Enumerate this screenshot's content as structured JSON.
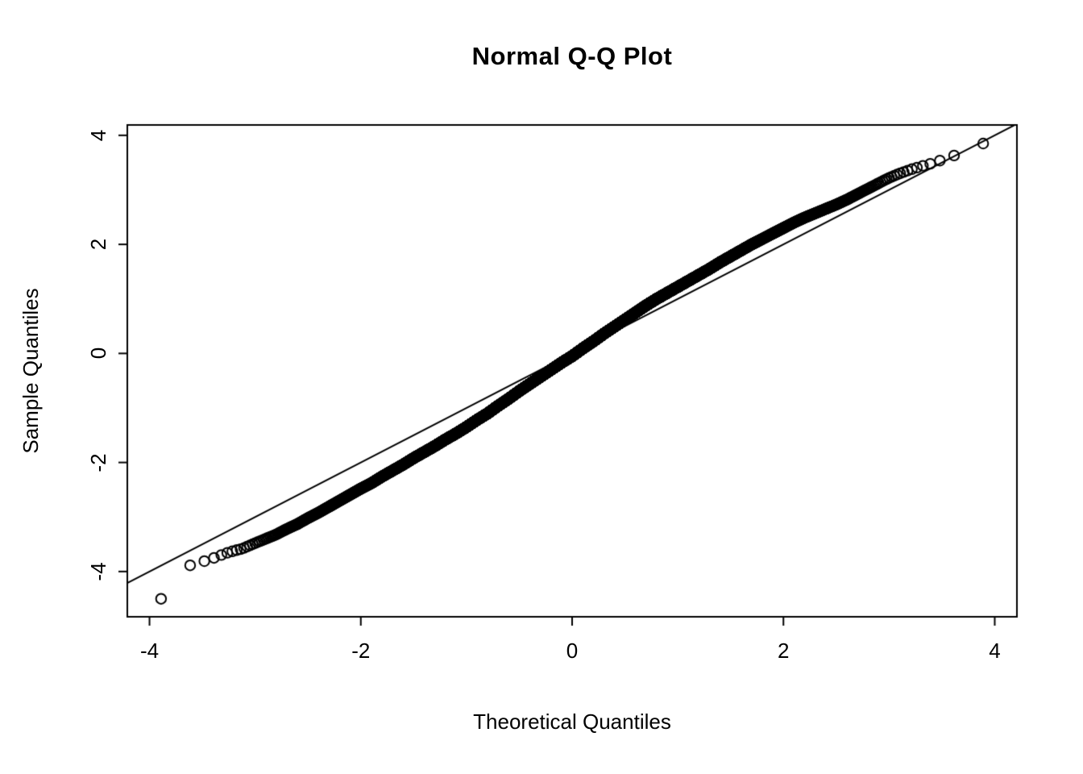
{
  "chart_data": {
    "type": "scatter",
    "title": "Normal Q-Q Plot",
    "xlabel": "Theoretical Quantiles",
    "ylabel": "Sample Quantiles",
    "xlim": [
      -4.21,
      4.21
    ],
    "ylim": [
      -4.83,
      4.19
    ],
    "xticks": [
      "-4",
      "-2",
      "0",
      "2",
      "4"
    ],
    "yticks": [
      "-4",
      "-2",
      "0",
      "2",
      "4"
    ],
    "xtick_values": [
      -4,
      -2,
      0,
      2,
      4
    ],
    "ytick_values": [
      -4,
      -2,
      0,
      2,
      4
    ],
    "grid": false,
    "legend": false,
    "n_points": 10000,
    "marker": "open-circle",
    "marker_radius_px": 6.2,
    "point_color": "#000000",
    "background": "#ffffff",
    "reference_line": {
      "slope": 1.0,
      "intercept": 0.0,
      "color": "#000000"
    },
    "qq_curve_anchors": [
      [
        -3.89,
        -4.5
      ],
      [
        -3.72,
        -3.93
      ],
      [
        -3.6,
        -3.88
      ],
      [
        -3.5,
        -3.82
      ],
      [
        -3.43,
        -3.78
      ],
      [
        -3.35,
        -3.72
      ],
      [
        -3.27,
        -3.66
      ],
      [
        -3.2,
        -3.62
      ],
      [
        -3.12,
        -3.58
      ],
      [
        -3.05,
        -3.52
      ],
      [
        -3.0,
        -3.48
      ],
      [
        -2.9,
        -3.4
      ],
      [
        -2.8,
        -3.32
      ],
      [
        -2.7,
        -3.22
      ],
      [
        -2.6,
        -3.13
      ],
      [
        -2.5,
        -3.02
      ],
      [
        -2.4,
        -2.92
      ],
      [
        -2.3,
        -2.81
      ],
      [
        -2.2,
        -2.7
      ],
      [
        -2.1,
        -2.59
      ],
      [
        -2.0,
        -2.48
      ],
      [
        -1.9,
        -2.38
      ],
      [
        -1.8,
        -2.26
      ],
      [
        -1.7,
        -2.15
      ],
      [
        -1.6,
        -2.04
      ],
      [
        -1.5,
        -1.92
      ],
      [
        -1.4,
        -1.81
      ],
      [
        -1.3,
        -1.7
      ],
      [
        -1.2,
        -1.58
      ],
      [
        -1.1,
        -1.47
      ],
      [
        -1.0,
        -1.35
      ],
      [
        -0.9,
        -1.22
      ],
      [
        -0.8,
        -1.1
      ],
      [
        -0.7,
        -0.96
      ],
      [
        -0.6,
        -0.83
      ],
      [
        -0.5,
        -0.69
      ],
      [
        -0.4,
        -0.56
      ],
      [
        -0.3,
        -0.43
      ],
      [
        -0.2,
        -0.3
      ],
      [
        -0.1,
        -0.17
      ],
      [
        0.0,
        -0.05
      ],
      [
        0.1,
        0.09
      ],
      [
        0.2,
        0.22
      ],
      [
        0.3,
        0.36
      ],
      [
        0.4,
        0.49
      ],
      [
        0.5,
        0.62
      ],
      [
        0.6,
        0.75
      ],
      [
        0.7,
        0.88
      ],
      [
        0.8,
        1.0
      ],
      [
        0.9,
        1.11
      ],
      [
        1.0,
        1.22
      ],
      [
        1.1,
        1.33
      ],
      [
        1.2,
        1.44
      ],
      [
        1.3,
        1.55
      ],
      [
        1.4,
        1.67
      ],
      [
        1.5,
        1.78
      ],
      [
        1.6,
        1.89
      ],
      [
        1.7,
        2.0
      ],
      [
        1.8,
        2.1
      ],
      [
        1.9,
        2.2
      ],
      [
        2.0,
        2.3
      ],
      [
        2.1,
        2.4
      ],
      [
        2.2,
        2.49
      ],
      [
        2.3,
        2.57
      ],
      [
        2.4,
        2.65
      ],
      [
        2.5,
        2.73
      ],
      [
        2.6,
        2.82
      ],
      [
        2.7,
        2.92
      ],
      [
        2.8,
        3.02
      ],
      [
        2.9,
        3.12
      ],
      [
        3.0,
        3.22
      ],
      [
        3.1,
        3.3
      ],
      [
        3.2,
        3.37
      ],
      [
        3.3,
        3.43
      ],
      [
        3.43,
        3.5
      ],
      [
        3.5,
        3.55
      ],
      [
        3.6,
        3.62
      ],
      [
        3.72,
        3.7
      ],
      [
        3.89,
        3.85
      ]
    ]
  }
}
